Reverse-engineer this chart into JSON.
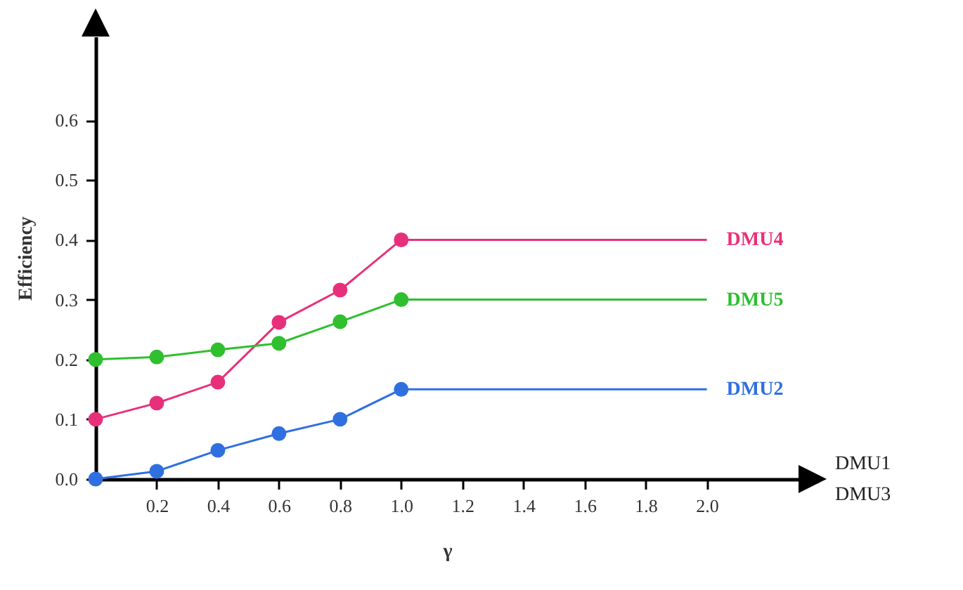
{
  "chart_data": {
    "type": "line",
    "xlabel": "γ",
    "ylabel": "Efficiency",
    "xlim": [
      0,
      2.3
    ],
    "ylim": [
      0,
      0.74
    ],
    "xticks": [
      {
        "value": 0.2,
        "label": "0.2"
      },
      {
        "value": 0.4,
        "label": "0.4"
      },
      {
        "value": 0.6,
        "label": "0.6"
      },
      {
        "value": 0.8,
        "label": "0.8"
      },
      {
        "value": 1,
        "label": "1.0"
      },
      {
        "value": 1.2,
        "label": "1.2"
      },
      {
        "value": 1.4,
        "label": "1.4"
      },
      {
        "value": 1.6,
        "label": "1.6"
      },
      {
        "value": 1.8,
        "label": "1.8"
      },
      {
        "value": 2,
        "label": "2.0"
      }
    ],
    "yticks": [
      {
        "value": 0,
        "label": "0.0"
      },
      {
        "value": 0.1,
        "label": "0.1"
      },
      {
        "value": 0.2,
        "label": "0.2"
      },
      {
        "value": 0.3,
        "label": "0.3"
      },
      {
        "value": 0.4,
        "label": "0.4"
      },
      {
        "value": 0.5,
        "label": "0.5"
      },
      {
        "value": 0.6,
        "label": "0.6"
      }
    ],
    "x": [
      0,
      0.2,
      0.4,
      0.6,
      0.8,
      1,
      2
    ],
    "series": [
      {
        "name": "DMU4",
        "color": "#e8307a",
        "values": [
          0.1,
          0.127,
          0.162,
          0.262,
          0.316,
          0.4,
          0.4
        ]
      },
      {
        "name": "DMU5",
        "color": "#2fbf2f",
        "values": [
          0.2,
          0.204,
          0.216,
          0.227,
          0.263,
          0.3,
          0.3
        ]
      },
      {
        "name": "DMU2",
        "color": "#2f6fe0",
        "values": [
          0,
          0.013,
          0.048,
          0.076,
          0.1,
          0.15,
          0.15
        ]
      }
    ],
    "marker": "circle",
    "grid": false,
    "legend": false,
    "annotations": [
      "DMU1",
      "DMU3"
    ]
  }
}
